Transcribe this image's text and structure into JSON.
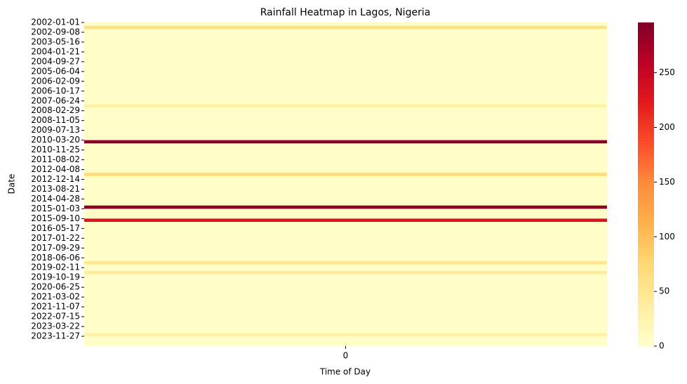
{
  "chart_data": {
    "type": "heatmap",
    "title": "Rainfall Heatmap in Lagos, Nigeria",
    "xlabel": "Time of Day",
    "ylabel": "Date",
    "columns": [
      "0"
    ],
    "categories": [
      "2002-01-01",
      null,
      null,
      "2002-09-08",
      null,
      null,
      "2003-05-16",
      null,
      null,
      "2004-01-21",
      null,
      null,
      "2004-09-27",
      null,
      null,
      "2005-06-04",
      null,
      null,
      "2006-02-09",
      null,
      null,
      "2006-10-17",
      null,
      null,
      "2007-06-24",
      null,
      null,
      "2008-02-29",
      null,
      null,
      "2008-11-05",
      null,
      null,
      "2009-07-13",
      null,
      null,
      "2010-03-20",
      null,
      null,
      "2010-11-25",
      null,
      null,
      "2011-08-02",
      null,
      null,
      "2012-04-08",
      null,
      null,
      "2012-12-14",
      null,
      null,
      "2013-08-21",
      null,
      null,
      "2014-04-28",
      null,
      null,
      "2015-01-03",
      null,
      null,
      "2015-09-10",
      null,
      null,
      "2016-05-17",
      null,
      null,
      "2017-01-22",
      null,
      null,
      "2017-09-29",
      null,
      null,
      "2018-06-06",
      null,
      null,
      "2019-02-11",
      null,
      null,
      "2019-10-19",
      null,
      null,
      "2020-06-25",
      null,
      null,
      "2021-03-02",
      null,
      null,
      "2021-11-07",
      null,
      null,
      "2022-07-15",
      null,
      null,
      "2023-03-22",
      null,
      null,
      "2023-11-27",
      null,
      null
    ],
    "values": [
      3,
      60,
      3,
      3,
      3,
      3,
      3,
      3,
      3,
      3,
      3,
      3,
      3,
      3,
      3,
      3,
      3,
      3,
      3,
      3,
      3,
      3,
      3,
      3,
      3,
      30,
      3,
      3,
      3,
      3,
      3,
      3,
      3,
      3,
      3,
      3,
      290,
      3,
      3,
      3,
      3,
      3,
      3,
      3,
      3,
      3,
      70,
      3,
      3,
      3,
      3,
      3,
      3,
      3,
      3,
      3,
      290,
      3,
      3,
      3,
      230,
      3,
      3,
      3,
      3,
      3,
      3,
      3,
      3,
      3,
      3,
      3,
      3,
      50,
      3,
      3,
      40,
      3,
      3,
      3,
      3,
      3,
      3,
      3,
      3,
      3,
      3,
      3,
      3,
      3,
      3,
      3,
      3,
      3,
      3,
      30,
      3,
      3,
      3
    ],
    "colormap": [
      "#ffffcc",
      "#ffeda0",
      "#fed976",
      "#feb24c",
      "#fd8d3c",
      "#fc4e2a",
      "#e31a1c",
      "#bd0026",
      "#800026"
    ],
    "clim": [
      0,
      296
    ],
    "colorbar_ticks": [
      0,
      50,
      100,
      150,
      200,
      250
    ],
    "grid": false
  }
}
